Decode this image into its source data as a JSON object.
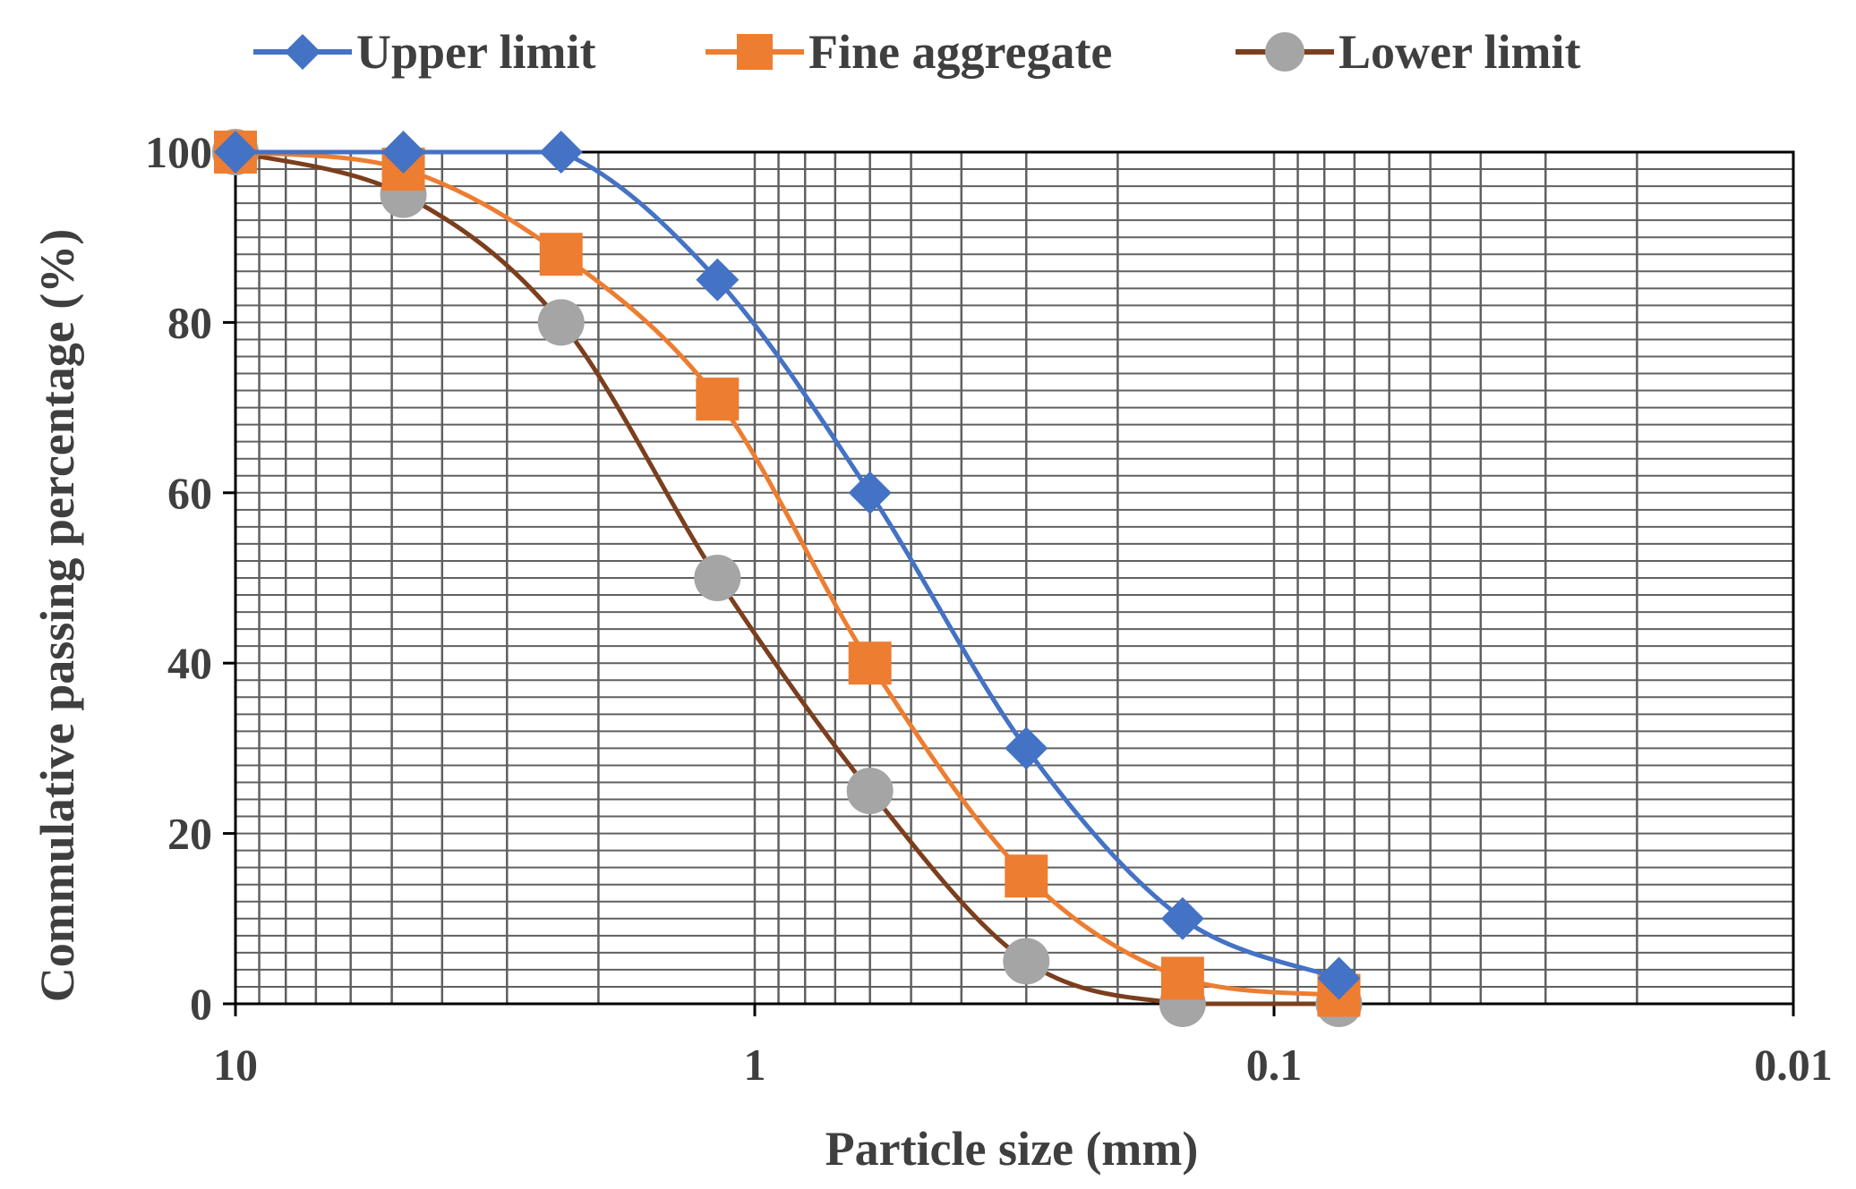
{
  "chart_data": {
    "type": "line",
    "title": "",
    "xlabel": "Particle size (mm)",
    "ylabel": "Commulative passing percentage (%)",
    "x_scale": "log",
    "x_reversed": true,
    "xlim": [
      10,
      0.01
    ],
    "ylim": [
      0,
      100
    ],
    "x_ticks": [
      {
        "value": 10,
        "label": "10"
      },
      {
        "value": 1,
        "label": "1"
      },
      {
        "value": 0.1,
        "label": "0.1"
      },
      {
        "value": 0.01,
        "label": "0.01"
      }
    ],
    "y_ticks": [
      {
        "value": 0,
        "label": "0"
      },
      {
        "value": 20,
        "label": "20"
      },
      {
        "value": 40,
        "label": "40"
      },
      {
        "value": 60,
        "label": "60"
      },
      {
        "value": 80,
        "label": "80"
      },
      {
        "value": 100,
        "label": "100"
      }
    ],
    "grid": true,
    "legend_position": "top",
    "x": [
      10,
      4.75,
      2.36,
      1.18,
      0.6,
      0.3,
      0.15,
      0.075
    ],
    "series": [
      {
        "name": "Upper limit",
        "color": "#4472C4",
        "marker": "diamond",
        "values": [
          100,
          100,
          100,
          85,
          60,
          30,
          10,
          3
        ]
      },
      {
        "name": "Fine aggregate",
        "color": "#ED7D31",
        "marker": "square",
        "values": [
          100,
          98,
          88,
          71,
          40,
          15,
          3,
          1
        ]
      },
      {
        "name": "Lower limit",
        "color": "#7B3F1E",
        "marker_color": "#A5A5A5",
        "marker": "circle",
        "values": [
          100,
          95,
          80,
          50,
          25,
          5,
          0,
          0
        ]
      }
    ]
  }
}
